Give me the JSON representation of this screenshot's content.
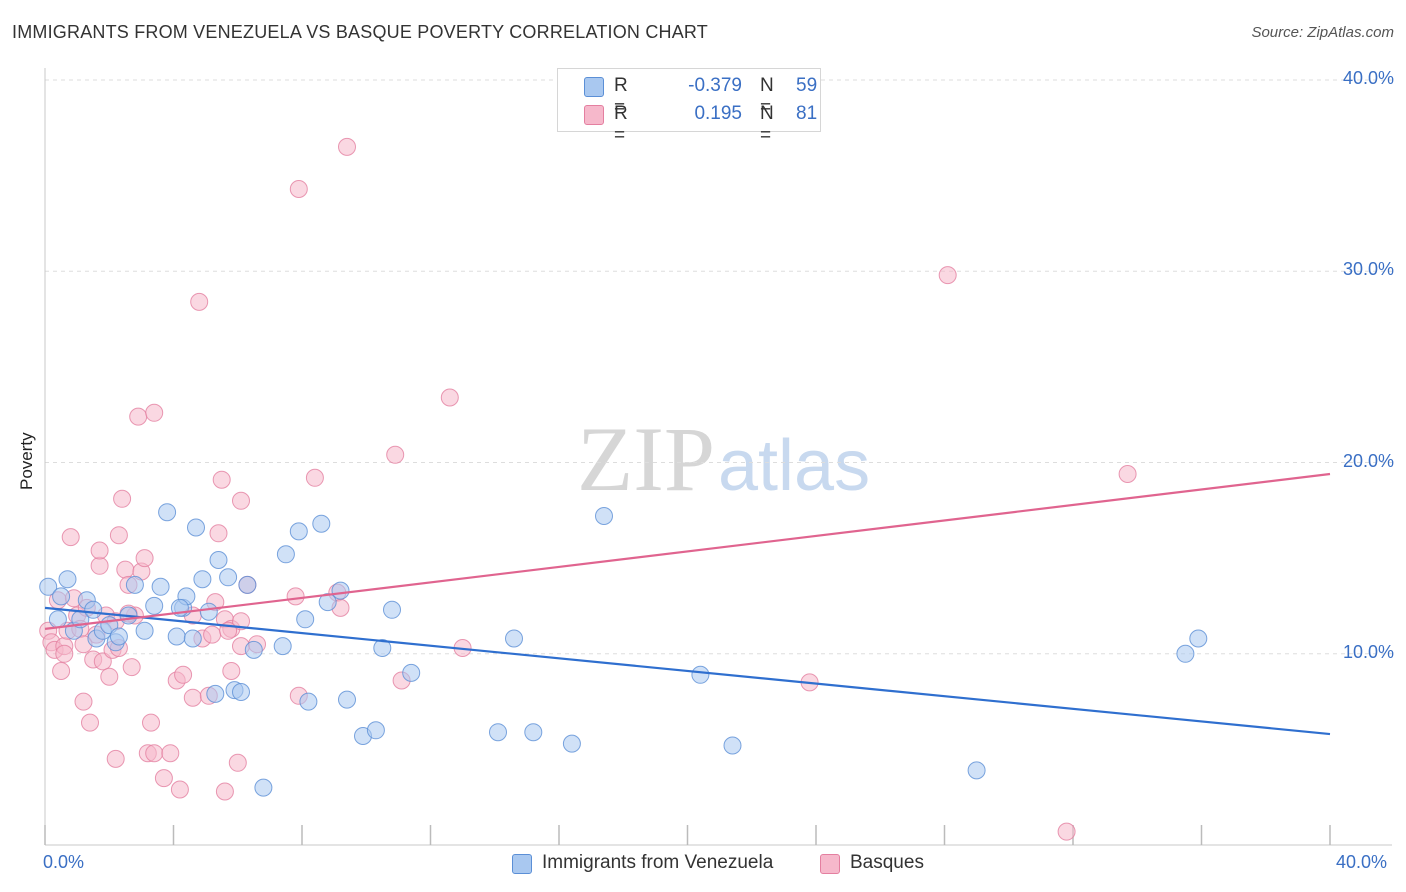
{
  "title": "IMMIGRANTS FROM VENEZUELA VS BASQUE POVERTY CORRELATION CHART",
  "source": "Source: ZipAtlas.com",
  "watermark": {
    "zip": "ZIP",
    "atlas": "atlas"
  },
  "legend": {
    "rows": [
      {
        "r_label": "R =",
        "r_value": "-0.379",
        "n_label": "N =",
        "n_value": "59",
        "color": "#a9c8f0"
      },
      {
        "r_label": "R =",
        "r_value": "0.195",
        "n_label": "N =",
        "n_value": "81",
        "color": "#f6b8cb"
      }
    ]
  },
  "bottom_legend": [
    {
      "label": "Immigrants from Venezuela",
      "color": "#a9c8f0"
    },
    {
      "label": "Basques",
      "color": "#f6b8cb"
    }
  ],
  "colors": {
    "blue_fill": "#a9c8f0",
    "blue_stroke": "#5b8fd6",
    "blue_line": "#2f6fcf",
    "pink_fill": "#f6b8cb",
    "pink_stroke": "#e47fa0",
    "pink_line": "#e0648f",
    "tick_text": "#3a6fc4",
    "grid": "#dddddd"
  },
  "chart_data": {
    "type": "scatter",
    "title": "IMMIGRANTS FROM VENEZUELA VS BASQUE POVERTY CORRELATION CHART",
    "xlabel": "",
    "ylabel": "Poverty",
    "xlim": [
      0,
      40
    ],
    "ylim": [
      0,
      40
    ],
    "x_ticks": [
      "0.0%",
      "40.0%"
    ],
    "y_ticks": [
      {
        "value": 10,
        "label": "10.0%"
      },
      {
        "value": 20,
        "label": "20.0%"
      },
      {
        "value": 30,
        "label": "30.0%"
      },
      {
        "value": 40,
        "label": "40.0%"
      }
    ],
    "grid": true,
    "legend_position": "top-center",
    "series": [
      {
        "name": "Immigrants from Venezuela",
        "r": -0.379,
        "n": 59,
        "trend": {
          "x": [
            0,
            40
          ],
          "y": [
            12.4,
            5.8
          ]
        },
        "points": [
          [
            0.1,
            13.5
          ],
          [
            0.4,
            11.8
          ],
          [
            0.5,
            13.0
          ],
          [
            0.7,
            13.9
          ],
          [
            0.9,
            11.2
          ],
          [
            1.1,
            11.8
          ],
          [
            1.3,
            12.8
          ],
          [
            1.5,
            12.3
          ],
          [
            1.6,
            10.8
          ],
          [
            1.8,
            11.2
          ],
          [
            2.0,
            11.5
          ],
          [
            2.2,
            10.6
          ],
          [
            2.3,
            10.9
          ],
          [
            2.6,
            12.0
          ],
          [
            2.8,
            13.6
          ],
          [
            3.1,
            11.2
          ],
          [
            3.4,
            12.5
          ],
          [
            3.6,
            13.5
          ],
          [
            3.8,
            17.4
          ],
          [
            4.1,
            10.9
          ],
          [
            4.3,
            12.4
          ],
          [
            4.4,
            13.0
          ],
          [
            4.6,
            10.8
          ],
          [
            4.7,
            16.6
          ],
          [
            4.9,
            13.9
          ],
          [
            5.1,
            12.2
          ],
          [
            5.3,
            7.9
          ],
          [
            5.4,
            14.9
          ],
          [
            5.7,
            14.0
          ],
          [
            5.9,
            8.1
          ],
          [
            6.1,
            8.0
          ],
          [
            6.3,
            13.6
          ],
          [
            6.5,
            10.2
          ],
          [
            6.8,
            3.0
          ],
          [
            7.4,
            10.4
          ],
          [
            7.5,
            15.2
          ],
          [
            7.9,
            16.4
          ],
          [
            8.1,
            11.8
          ],
          [
            8.2,
            7.5
          ],
          [
            8.6,
            16.8
          ],
          [
            8.8,
            12.7
          ],
          [
            9.2,
            13.3
          ],
          [
            9.4,
            7.6
          ],
          [
            9.9,
            5.7
          ],
          [
            10.3,
            6.0
          ],
          [
            10.5,
            10.3
          ],
          [
            10.8,
            12.3
          ],
          [
            11.4,
            9.0
          ],
          [
            14.1,
            5.9
          ],
          [
            14.6,
            10.8
          ],
          [
            15.2,
            5.9
          ],
          [
            16.4,
            5.3
          ],
          [
            17.4,
            17.2
          ],
          [
            20.4,
            8.9
          ],
          [
            21.4,
            5.2
          ],
          [
            29.0,
            3.9
          ],
          [
            35.5,
            10.0
          ],
          [
            35.9,
            10.8
          ],
          [
            4.2,
            12.4
          ]
        ]
      },
      {
        "name": "Basques",
        "r": 0.195,
        "n": 81,
        "trend": {
          "x": [
            0,
            40
          ],
          "y": [
            11.3,
            19.4
          ]
        },
        "points": [
          [
            0.1,
            11.2
          ],
          [
            0.2,
            10.6
          ],
          [
            0.3,
            10.2
          ],
          [
            0.4,
            12.8
          ],
          [
            0.5,
            9.1
          ],
          [
            0.6,
            10.4
          ],
          [
            0.7,
            11.2
          ],
          [
            0.8,
            16.1
          ],
          [
            0.9,
            12.9
          ],
          [
            1.0,
            12.0
          ],
          [
            1.1,
            11.3
          ],
          [
            1.2,
            7.5
          ],
          [
            1.3,
            12.4
          ],
          [
            1.4,
            6.4
          ],
          [
            1.5,
            9.7
          ],
          [
            1.6,
            11.0
          ],
          [
            1.7,
            14.6
          ],
          [
            1.7,
            15.4
          ],
          [
            1.8,
            9.6
          ],
          [
            1.9,
            12.0
          ],
          [
            2.0,
            8.8
          ],
          [
            2.1,
            10.2
          ],
          [
            2.2,
            11.7
          ],
          [
            2.3,
            10.3
          ],
          [
            2.2,
            4.5
          ],
          [
            2.3,
            16.2
          ],
          [
            2.4,
            18.1
          ],
          [
            2.5,
            14.4
          ],
          [
            2.6,
            13.6
          ],
          [
            2.7,
            9.3
          ],
          [
            2.8,
            12.0
          ],
          [
            2.9,
            22.4
          ],
          [
            3.0,
            14.3
          ],
          [
            3.1,
            15.0
          ],
          [
            3.2,
            4.8
          ],
          [
            3.3,
            6.4
          ],
          [
            3.4,
            22.6
          ],
          [
            3.4,
            4.8
          ],
          [
            3.7,
            3.5
          ],
          [
            3.9,
            4.8
          ],
          [
            4.1,
            8.6
          ],
          [
            4.2,
            2.9
          ],
          [
            4.3,
            8.9
          ],
          [
            4.6,
            7.7
          ],
          [
            4.8,
            28.4
          ],
          [
            4.9,
            10.8
          ],
          [
            5.1,
            7.8
          ],
          [
            5.2,
            11.0
          ],
          [
            5.3,
            12.7
          ],
          [
            5.4,
            16.3
          ],
          [
            5.5,
            19.1
          ],
          [
            5.6,
            2.8
          ],
          [
            5.6,
            11.8
          ],
          [
            5.8,
            11.3
          ],
          [
            5.8,
            9.1
          ],
          [
            6.1,
            10.4
          ],
          [
            6.1,
            18.0
          ],
          [
            6.0,
            4.3
          ],
          [
            6.1,
            11.7
          ],
          [
            6.3,
            13.6
          ],
          [
            6.6,
            10.5
          ],
          [
            7.8,
            13.0
          ],
          [
            7.9,
            7.8
          ],
          [
            7.9,
            34.3
          ],
          [
            8.4,
            19.2
          ],
          [
            9.1,
            13.2
          ],
          [
            9.2,
            12.4
          ],
          [
            9.4,
            36.5
          ],
          [
            10.9,
            20.4
          ],
          [
            11.1,
            8.6
          ],
          [
            12.6,
            23.4
          ],
          [
            13.0,
            10.3
          ],
          [
            23.8,
            8.5
          ],
          [
            28.1,
            29.8
          ],
          [
            31.8,
            0.7
          ],
          [
            33.7,
            19.4
          ],
          [
            0.6,
            10.0
          ],
          [
            1.2,
            10.5
          ],
          [
            2.6,
            12.1
          ],
          [
            4.6,
            12.0
          ],
          [
            5.7,
            11.2
          ]
        ]
      }
    ]
  }
}
